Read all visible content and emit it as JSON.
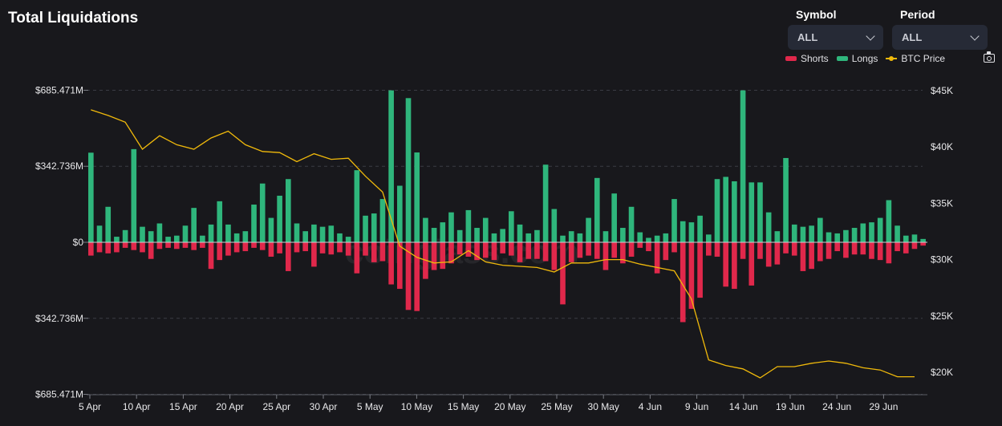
{
  "header": {
    "title": "Total Liquidations",
    "symbol_label": "Symbol",
    "symbol_value": "ALL",
    "period_label": "Period",
    "period_value": "ALL"
  },
  "legend": {
    "shorts": "Shorts",
    "longs": "Longs",
    "price": "BTC Price"
  },
  "watermark": "coinglass.com",
  "colors": {
    "shorts": "#e0284b",
    "longs": "#2fb67c",
    "price": "#f0b90b",
    "background": "#18181c"
  },
  "icons": {
    "camera": "camera-icon",
    "dropdown": "chevron-down-icon"
  },
  "chart_data": {
    "type": "bar",
    "title": "Total Liquidations",
    "left_axis": {
      "ticks": [
        {
          "value": 685.471,
          "label": "$685.471M"
        },
        {
          "value": 342.736,
          "label": "$342.736M"
        },
        {
          "value": 0,
          "label": "$0"
        },
        {
          "value": -342.736,
          "label": "$342.736M"
        },
        {
          "value": -685.471,
          "label": "$685.471M"
        }
      ],
      "range": [
        -685.471,
        685.471
      ],
      "unit": "M USD (longs above zero, shorts below)"
    },
    "right_axis": {
      "ticks": [
        {
          "value": 45000,
          "label": "$45K"
        },
        {
          "value": 40000,
          "label": "$40K"
        },
        {
          "value": 35000,
          "label": "$35K"
        },
        {
          "value": 30000,
          "label": "$30K"
        },
        {
          "value": 25000,
          "label": "$25K"
        },
        {
          "value": 20000,
          "label": "$20K"
        }
      ],
      "range": [
        18000,
        46000
      ]
    },
    "x_tick_labels": [
      "5 Apr",
      "10 Apr",
      "15 Apr",
      "20 Apr",
      "25 Apr",
      "30 Apr",
      "5 May",
      "10 May",
      "15 May",
      "20 May",
      "25 May",
      "30 May",
      "4 Jun",
      "9 Jun",
      "14 Jun",
      "19 Jun",
      "24 Jun",
      "29 Jun"
    ],
    "grid": "horizontal dashed",
    "legend_position": "top-right",
    "series": [
      {
        "name": "Longs",
        "values": [
          404,
          75,
          160,
          25,
          55,
          420,
          70,
          50,
          85,
          25,
          30,
          75,
          155,
          30,
          80,
          185,
          80,
          40,
          50,
          170,
          265,
          110,
          210,
          285,
          85,
          50,
          80,
          70,
          75,
          40,
          25,
          325,
          120,
          130,
          195,
          685,
          255,
          650,
          405,
          110,
          65,
          90,
          135,
          55,
          145,
          65,
          110,
          40,
          60,
          140,
          80,
          40,
          55,
          350,
          150,
          30,
          50,
          40,
          110,
          290,
          50,
          220,
          65,
          160,
          45,
          20,
          30,
          40,
          195,
          95,
          90,
          120,
          35,
          285,
          295,
          275,
          685,
          270,
          270,
          135,
          50,
          380,
          80,
          70,
          75,
          110,
          45,
          40,
          55,
          65,
          85,
          90,
          110,
          190,
          75,
          30,
          35,
          15
        ],
        "unit": "M USD"
      },
      {
        "name": "Shorts",
        "values": [
          60,
          45,
          50,
          45,
          25,
          35,
          45,
          75,
          30,
          25,
          30,
          25,
          35,
          25,
          120,
          80,
          60,
          45,
          40,
          25,
          35,
          65,
          50,
          130,
          45,
          40,
          110,
          50,
          55,
          45,
          60,
          140,
          60,
          90,
          85,
          190,
          210,
          305,
          310,
          165,
          125,
          120,
          95,
          55,
          65,
          80,
          70,
          80,
          50,
          60,
          90,
          75,
          75,
          85,
          125,
          280,
          90,
          70,
          60,
          75,
          125,
          70,
          95,
          65,
          25,
          40,
          140,
          80,
          45,
          360,
          300,
          250,
          60,
          65,
          200,
          210,
          75,
          195,
          75,
          110,
          100,
          50,
          60,
          130,
          120,
          85,
          75,
          40,
          70,
          55,
          55,
          75,
          80,
          95,
          40,
          50,
          30,
          15
        ],
        "unit": "M USD"
      },
      {
        "name": "BTC Price",
        "x_index": [
          0,
          2,
          4,
          6,
          8,
          10,
          12,
          14,
          16,
          18,
          20,
          22,
          24,
          26,
          28,
          30,
          32,
          34,
          36,
          38,
          40,
          42,
          44,
          46,
          48,
          50,
          52,
          54,
          56,
          58,
          60,
          62,
          64,
          66,
          68,
          70,
          72,
          74,
          76,
          78,
          80,
          82,
          84,
          86,
          88,
          90,
          92,
          94,
          96
        ],
        "values": [
          43300,
          42800,
          42200,
          39800,
          41000,
          40200,
          39800,
          40800,
          41400,
          40200,
          39600,
          39500,
          38700,
          39400,
          38900,
          39000,
          37400,
          36000,
          31200,
          30200,
          29700,
          29800,
          30800,
          29800,
          29500,
          29400,
          29300,
          28900,
          29700,
          29700,
          30000,
          30000,
          29600,
          29300,
          29000,
          26500,
          21100,
          20600,
          20300,
          19500,
          20500,
          20500,
          20800,
          21000,
          20800,
          20400,
          20200,
          19600,
          19600
        ],
        "unit": "USD"
      }
    ]
  }
}
